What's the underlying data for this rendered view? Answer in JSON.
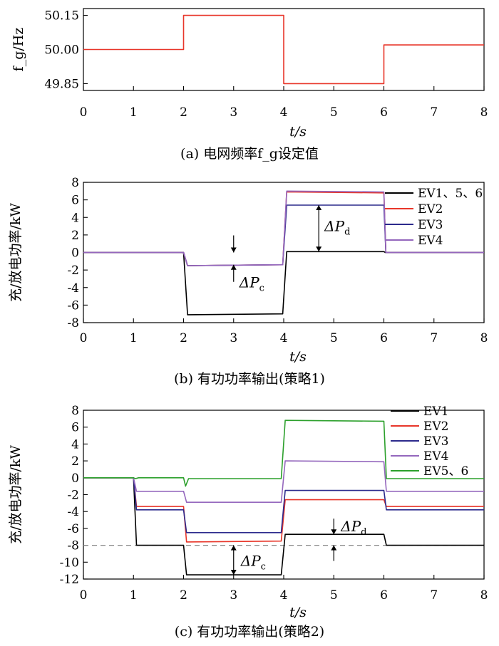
{
  "chart_data": [
    {
      "panel": "a",
      "type": "line",
      "ylabel": "f_g/Hz",
      "xlabel": "t/s",
      "caption": "(a) 电网频率f_g设定值",
      "xlim": [
        0,
        8
      ],
      "ylim": [
        49.82,
        50.18
      ],
      "xticks": [
        "0",
        "1",
        "2",
        "3",
        "4",
        "5",
        "6",
        "7",
        "8"
      ],
      "yticks": [
        "49.85",
        "50.00",
        "50.15"
      ],
      "series": [
        {
          "color": "#e8362a",
          "x": [
            0,
            2,
            2,
            4,
            4,
            6,
            6,
            8
          ],
          "y": [
            50.0,
            50.0,
            50.15,
            50.15,
            49.85,
            49.85,
            50.02,
            50.02
          ]
        }
      ]
    },
    {
      "panel": "b",
      "type": "line",
      "ylabel": "充/放电功率/kW",
      "xlabel": "t/s",
      "caption": "(b) 有功功率输出(策略1)",
      "xlim": [
        0,
        8
      ],
      "ylim": [
        -8,
        8
      ],
      "xticks": [
        "0",
        "1",
        "2",
        "3",
        "4",
        "5",
        "6",
        "7",
        "8"
      ],
      "yticks": [
        "-8",
        "-6",
        "-4",
        "-2",
        "0",
        "2",
        "4",
        "6",
        "8"
      ],
      "legend": "top-right",
      "series": [
        {
          "name": "EV1、5、6",
          "color": "#000000",
          "x": [
            0,
            2.0,
            2.08,
            3.98,
            4.06,
            6.0,
            6.03,
            8
          ],
          "y": [
            0,
            0,
            -7.1,
            -7.0,
            0.1,
            0.1,
            0,
            0
          ]
        },
        {
          "name": "EV2",
          "color": "#e8362a",
          "x": [
            0,
            2.0,
            2.08,
            3.98,
            4.06,
            6.0,
            6.04,
            8
          ],
          "y": [
            0,
            0,
            -1.5,
            -1.4,
            6.9,
            6.8,
            0,
            0
          ]
        },
        {
          "name": "EV3",
          "color": "#2c2a8c",
          "x": [
            0,
            2.0,
            2.08,
            3.98,
            4.06,
            6.0,
            6.04,
            8
          ],
          "y": [
            0,
            0,
            -1.5,
            -1.4,
            5.4,
            5.4,
            0,
            0
          ]
        },
        {
          "name": "EV4",
          "color": "#9467bd",
          "x": [
            0,
            2.0,
            2.08,
            3.98,
            4.06,
            6.0,
            6.04,
            8
          ],
          "y": [
            0,
            0,
            -1.5,
            -1.4,
            7.0,
            6.9,
            0,
            0
          ]
        }
      ],
      "annotations": [
        {
          "text": "ΔP",
          "sub": "c",
          "x": 3.0,
          "y": -1.4
        },
        {
          "text": "ΔP",
          "sub": "d",
          "x": 4.7,
          "y": 5.4
        }
      ]
    },
    {
      "panel": "c",
      "type": "line",
      "ylabel": "充/放电功率/kW",
      "xlabel": "t/s",
      "caption": "(c) 有功功率输出(策略2)",
      "xlim": [
        0,
        8
      ],
      "ylim": [
        -12,
        8
      ],
      "xticks": [
        "0",
        "1",
        "2",
        "3",
        "4",
        "5",
        "6",
        "7",
        "8"
      ],
      "yticks": [
        "-12",
        "-10",
        "-8",
        "-6",
        "-4",
        "-2",
        "0",
        "2",
        "4",
        "6",
        "8"
      ],
      "legend": "top-right",
      "reference_line": -8,
      "series": [
        {
          "name": "EV1",
          "color": "#000000",
          "x": [
            0,
            1.0,
            1.06,
            2.0,
            2.06,
            3.95,
            4.03,
            6.0,
            6.05,
            8
          ],
          "y": [
            0,
            0,
            -8.0,
            -8.0,
            -11.5,
            -11.5,
            -6.7,
            -6.7,
            -8.0,
            -8.0
          ]
        },
        {
          "name": "EV2",
          "color": "#e8362a",
          "x": [
            0,
            1.0,
            1.06,
            2.0,
            2.06,
            3.95,
            4.03,
            6.0,
            6.05,
            8
          ],
          "y": [
            0,
            0,
            -3.4,
            -3.4,
            -7.6,
            -7.5,
            -2.6,
            -2.6,
            -3.4,
            -3.4
          ]
        },
        {
          "name": "EV3",
          "color": "#2c2a8c",
          "x": [
            0,
            1.0,
            1.06,
            2.0,
            2.06,
            3.95,
            4.03,
            6.0,
            6.05,
            8
          ],
          "y": [
            0,
            0,
            -3.8,
            -3.8,
            -6.5,
            -6.5,
            -1.5,
            -1.5,
            -3.8,
            -3.8
          ]
        },
        {
          "name": "EV4",
          "color": "#9467bd",
          "x": [
            0,
            1.0,
            1.06,
            2.0,
            2.06,
            3.95,
            4.03,
            6.0,
            6.05,
            8
          ],
          "y": [
            0,
            0,
            -1.6,
            -1.6,
            -2.9,
            -2.9,
            2.0,
            1.9,
            -1.6,
            -1.6
          ]
        },
        {
          "name": "EV5、6",
          "color": "#2ca02c",
          "x": [
            0,
            1.0,
            1.04,
            1.1,
            2.0,
            2.04,
            2.1,
            3.95,
            4.03,
            6.0,
            6.05,
            8
          ],
          "y": [
            0,
            0,
            -0.1,
            0,
            0,
            -1.0,
            -0.1,
            -0.1,
            6.8,
            6.7,
            -0.1,
            -0.1
          ]
        }
      ],
      "annotations": [
        {
          "text": "ΔP",
          "sub": "c",
          "x": 3.0,
          "y": -11.5
        },
        {
          "text": "ΔP",
          "sub": "d",
          "x": 5.0,
          "y": -6.7
        }
      ]
    }
  ]
}
